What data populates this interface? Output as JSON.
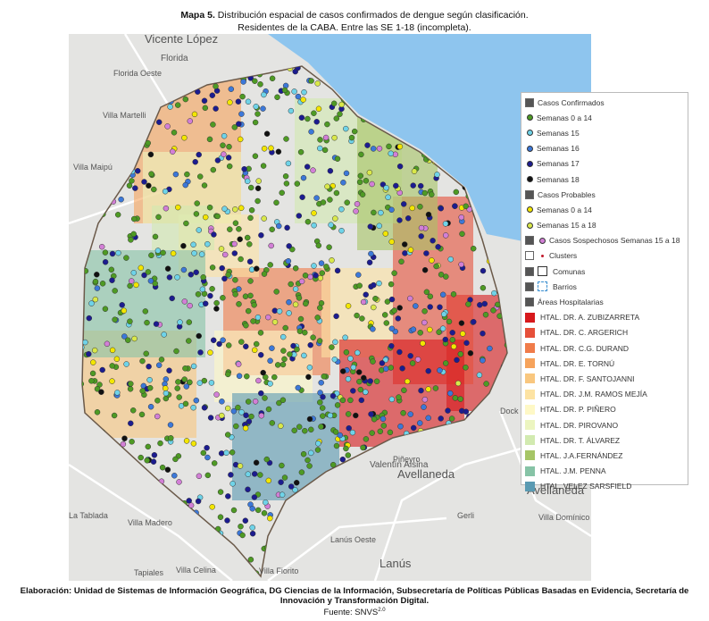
{
  "header": {
    "label": "Mapa 5.",
    "title": "Distribución espacial de casos confirmados de dengue según clasificación.",
    "subtitle": "Residentes de la CABA. Entre las SE 1-18 (incompleta)."
  },
  "map": {
    "place_labels": [
      "Vicente López",
      "Florida",
      "Florida Oeste",
      "Villa Martelli",
      "Villa Maipú",
      "Valentín Alsina",
      "Piñeyro",
      "Avellaneda",
      "Gerli",
      "Villa Domínico",
      "La Tablada",
      "Villa Madero",
      "Lanús Oeste",
      "Lanús",
      "Tapiales",
      "Villa Celina",
      "Villa Fiorito",
      "Dock Sud",
      "Avellaneda"
    ]
  },
  "legend": {
    "items": [
      {
        "label": "Casos Confirmados",
        "kind": "group",
        "checked": true
      },
      {
        "label": "Semanas 0 a 14",
        "kind": "point",
        "color": "#4e9a24"
      },
      {
        "label": "Semanas 15",
        "kind": "point",
        "color": "#6fd3e8"
      },
      {
        "label": "Semanas 16",
        "kind": "point",
        "color": "#3c78d8"
      },
      {
        "label": "Semanas 17",
        "kind": "point",
        "color": "#1c1c8f"
      },
      {
        "label": "Semanas 18",
        "kind": "point",
        "color": "#111111"
      },
      {
        "label": "Casos Probables",
        "kind": "group",
        "checked": true
      },
      {
        "label": "Semanas 0 a 14",
        "kind": "point",
        "color": "#f3e600"
      },
      {
        "label": "Semanas 15 a 18",
        "kind": "point",
        "color": "#d9e84a"
      },
      {
        "label": "Casos Sospechosos Semanas 15 a 18",
        "kind": "point-check",
        "checked": true,
        "color": "#d27fd6"
      },
      {
        "label": "Clusters",
        "kind": "dot-check",
        "checked": false,
        "color": "#c0182a"
      },
      {
        "label": "Comunas",
        "kind": "box-check",
        "checked": true,
        "color": "#333333"
      },
      {
        "label": "Barrios",
        "kind": "dash-check",
        "checked": true,
        "color": "#3a8fd0"
      },
      {
        "label": "Áreas Hospitalarias",
        "kind": "group",
        "checked": true
      },
      {
        "label": "HTAL. DR. A. ZUBIZARRETA",
        "kind": "swatch",
        "color": "#d7191c"
      },
      {
        "label": "HTAL. DR. C. ARGERICH",
        "kind": "swatch",
        "color": "#e6503a"
      },
      {
        "label": "HTAL. DR. C.G. DURAND",
        "kind": "swatch",
        "color": "#f07c4a"
      },
      {
        "label": "HTAL. DR. E. TORNÚ",
        "kind": "swatch",
        "color": "#f6a35c"
      },
      {
        "label": "HTAL. DR. F. SANTOJANNI",
        "kind": "swatch",
        "color": "#f9c77f"
      },
      {
        "label": "HTAL. DR. J.M. RAMOS MEJÍA",
        "kind": "swatch",
        "color": "#fde3a3"
      },
      {
        "label": "HTAL. DR. P. PIÑERO",
        "kind": "swatch",
        "color": "#fef8c6"
      },
      {
        "label": "HTAL. DR. PIROVANO",
        "kind": "swatch",
        "color": "#ecf5c0"
      },
      {
        "label": "HTAL. DR. T. ÁLVAREZ",
        "kind": "swatch",
        "color": "#d2eab0"
      },
      {
        "label": "HTAL. J.A.FERNÁNDEZ",
        "kind": "swatch",
        "color": "#a6c566"
      },
      {
        "label": "HTAL. J.M. PENNA",
        "kind": "swatch",
        "color": "#86c3a6"
      },
      {
        "label": "HTAL. VELEZ SARSFIELD",
        "kind": "swatch",
        "color": "#5a9ab2"
      }
    ]
  },
  "footer": {
    "credit": "Elaboración: Unidad de Sistemas de Información Geográfica, DG Ciencias de la Información, Subsecretaría de Políticas Públicas Basadas en Evidencia, Secretaría de Innovación y Transformación Digital.",
    "source": "Fuente: SNVS",
    "source_sup": "2.0"
  }
}
